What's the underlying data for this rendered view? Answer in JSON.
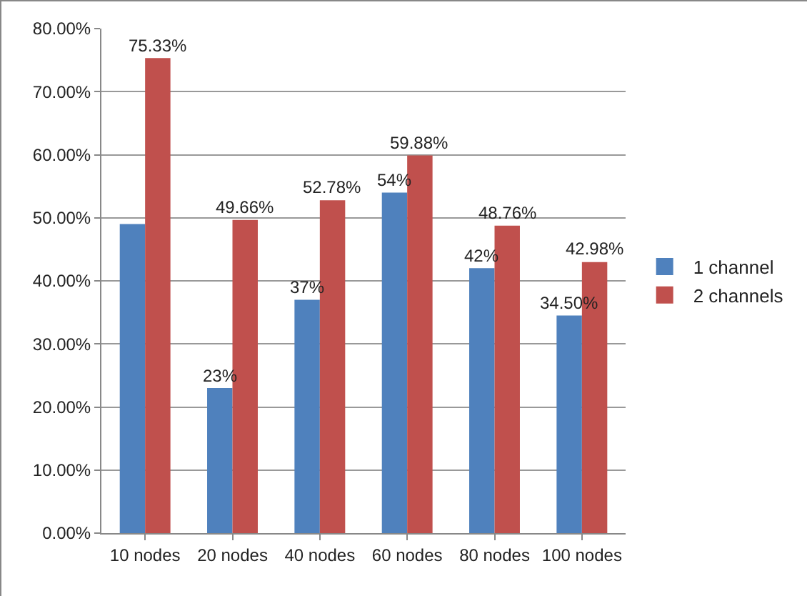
{
  "chart_data": {
    "type": "bar",
    "categories": [
      "10 nodes",
      "20 nodes",
      "40 nodes",
      "60 nodes",
      "80 nodes",
      "100 nodes"
    ],
    "series": [
      {
        "name": "1 channel",
        "color": "#4f81bd",
        "values": [
          49,
          23,
          37,
          54,
          42,
          34.5
        ],
        "value_labels": [
          null,
          "23%",
          "37%",
          "54%",
          "42%",
          "34.50%"
        ]
      },
      {
        "name": "2 channels",
        "color": "#c0504d",
        "values": [
          75.33,
          49.66,
          52.78,
          59.88,
          48.76,
          42.98
        ],
        "value_labels": [
          "75.33%",
          "49.66%",
          "52.78%",
          "59.88%",
          "48.76%",
          "42.98%"
        ]
      }
    ],
    "ylim": [
      0,
      80
    ],
    "yticks": [
      {
        "value": 0,
        "label": "0.00%"
      },
      {
        "value": 10,
        "label": "10.00%"
      },
      {
        "value": 20,
        "label": "20.00%"
      },
      {
        "value": 30,
        "label": "30.00%"
      },
      {
        "value": 40,
        "label": "40.00%"
      },
      {
        "value": 50,
        "label": "50.00%"
      },
      {
        "value": 60,
        "label": "60.00%"
      },
      {
        "value": 70,
        "label": "70.00%"
      },
      {
        "value": 80,
        "label": "80.00%"
      }
    ],
    "grid": "y",
    "legend": "right"
  }
}
